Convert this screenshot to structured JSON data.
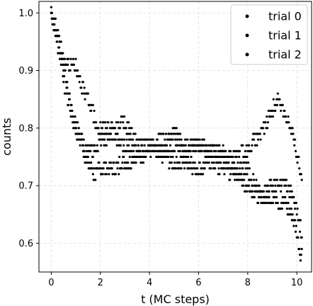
{
  "chart_data": {
    "type": "scatter",
    "xlabel": "t (MC steps)",
    "ylabel": "counts",
    "xlim": [
      -0.5,
      10.6
    ],
    "ylim": [
      0.55,
      1.02
    ],
    "x_ticks": [
      "0",
      "2",
      "4",
      "6",
      "8",
      "10"
    ],
    "y_ticks": [
      "0.6",
      "0.7",
      "0.8",
      "0.9",
      "1.0"
    ],
    "grid": true,
    "grid_style": "dashed",
    "legend_position": "top-right",
    "marker_color": "#000000",
    "step": 0.025,
    "series": [
      {
        "name": "trial 0",
        "keypoints": [
          [
            0,
            1.0
          ],
          [
            0.3,
            0.96
          ],
          [
            0.6,
            0.89
          ],
          [
            0.8,
            0.83
          ],
          [
            1.0,
            0.81
          ],
          [
            1.2,
            0.78
          ],
          [
            1.4,
            0.75
          ],
          [
            1.6,
            0.73
          ],
          [
            1.8,
            0.72
          ],
          [
            2.0,
            0.73
          ],
          [
            2.5,
            0.73
          ],
          [
            3.0,
            0.74
          ],
          [
            3.5,
            0.75
          ],
          [
            4.0,
            0.76
          ],
          [
            4.5,
            0.75
          ],
          [
            5.0,
            0.74
          ],
          [
            5.5,
            0.74
          ],
          [
            6.0,
            0.73
          ],
          [
            6.5,
            0.74
          ],
          [
            7.0,
            0.73
          ],
          [
            7.5,
            0.72
          ],
          [
            8.0,
            0.7
          ],
          [
            8.5,
            0.68
          ],
          [
            9.0,
            0.68
          ],
          [
            9.5,
            0.67
          ],
          [
            9.8,
            0.65
          ],
          [
            10.0,
            0.62
          ],
          [
            10.1,
            0.59
          ],
          [
            10.2,
            0.58
          ]
        ]
      },
      {
        "name": "trial 1",
        "keypoints": [
          [
            0,
            0.99
          ],
          [
            0.3,
            0.94
          ],
          [
            0.6,
            0.86
          ],
          [
            0.8,
            0.84
          ],
          [
            1.0,
            0.79
          ],
          [
            1.2,
            0.78
          ],
          [
            1.4,
            0.76
          ],
          [
            1.6,
            0.76
          ],
          [
            1.8,
            0.77
          ],
          [
            2.0,
            0.78
          ],
          [
            2.5,
            0.79
          ],
          [
            3.0,
            0.77
          ],
          [
            3.5,
            0.76
          ],
          [
            4.0,
            0.77
          ],
          [
            4.5,
            0.76
          ],
          [
            5.0,
            0.77
          ],
          [
            5.5,
            0.76
          ],
          [
            6.0,
            0.77
          ],
          [
            6.5,
            0.76
          ],
          [
            7.0,
            0.75
          ],
          [
            7.5,
            0.75
          ],
          [
            8.0,
            0.76
          ],
          [
            8.3,
            0.78
          ],
          [
            8.6,
            0.79
          ],
          [
            8.9,
            0.82
          ],
          [
            9.2,
            0.85
          ],
          [
            9.4,
            0.84
          ],
          [
            9.6,
            0.82
          ],
          [
            9.8,
            0.79
          ],
          [
            10.0,
            0.76
          ],
          [
            10.2,
            0.71
          ]
        ]
      },
      {
        "name": "trial 2",
        "keypoints": [
          [
            0,
            1.0
          ],
          [
            0.3,
            0.95
          ],
          [
            0.6,
            0.91
          ],
          [
            0.8,
            0.91
          ],
          [
            1.0,
            0.91
          ],
          [
            1.2,
            0.88
          ],
          [
            1.4,
            0.85
          ],
          [
            1.6,
            0.84
          ],
          [
            1.8,
            0.81
          ],
          [
            2.0,
            0.8
          ],
          [
            2.5,
            0.8
          ],
          [
            3.0,
            0.81
          ],
          [
            3.5,
            0.77
          ],
          [
            4.0,
            0.77
          ],
          [
            4.5,
            0.78
          ],
          [
            5.0,
            0.79
          ],
          [
            5.5,
            0.77
          ],
          [
            6.0,
            0.77
          ],
          [
            6.5,
            0.76
          ],
          [
            7.0,
            0.76
          ],
          [
            7.5,
            0.73
          ],
          [
            8.0,
            0.73
          ],
          [
            8.3,
            0.7
          ],
          [
            8.6,
            0.68
          ],
          [
            9.0,
            0.7
          ],
          [
            9.5,
            0.7
          ],
          [
            9.8,
            0.69
          ],
          [
            10.0,
            0.66
          ],
          [
            10.2,
            0.62
          ]
        ]
      }
    ]
  }
}
